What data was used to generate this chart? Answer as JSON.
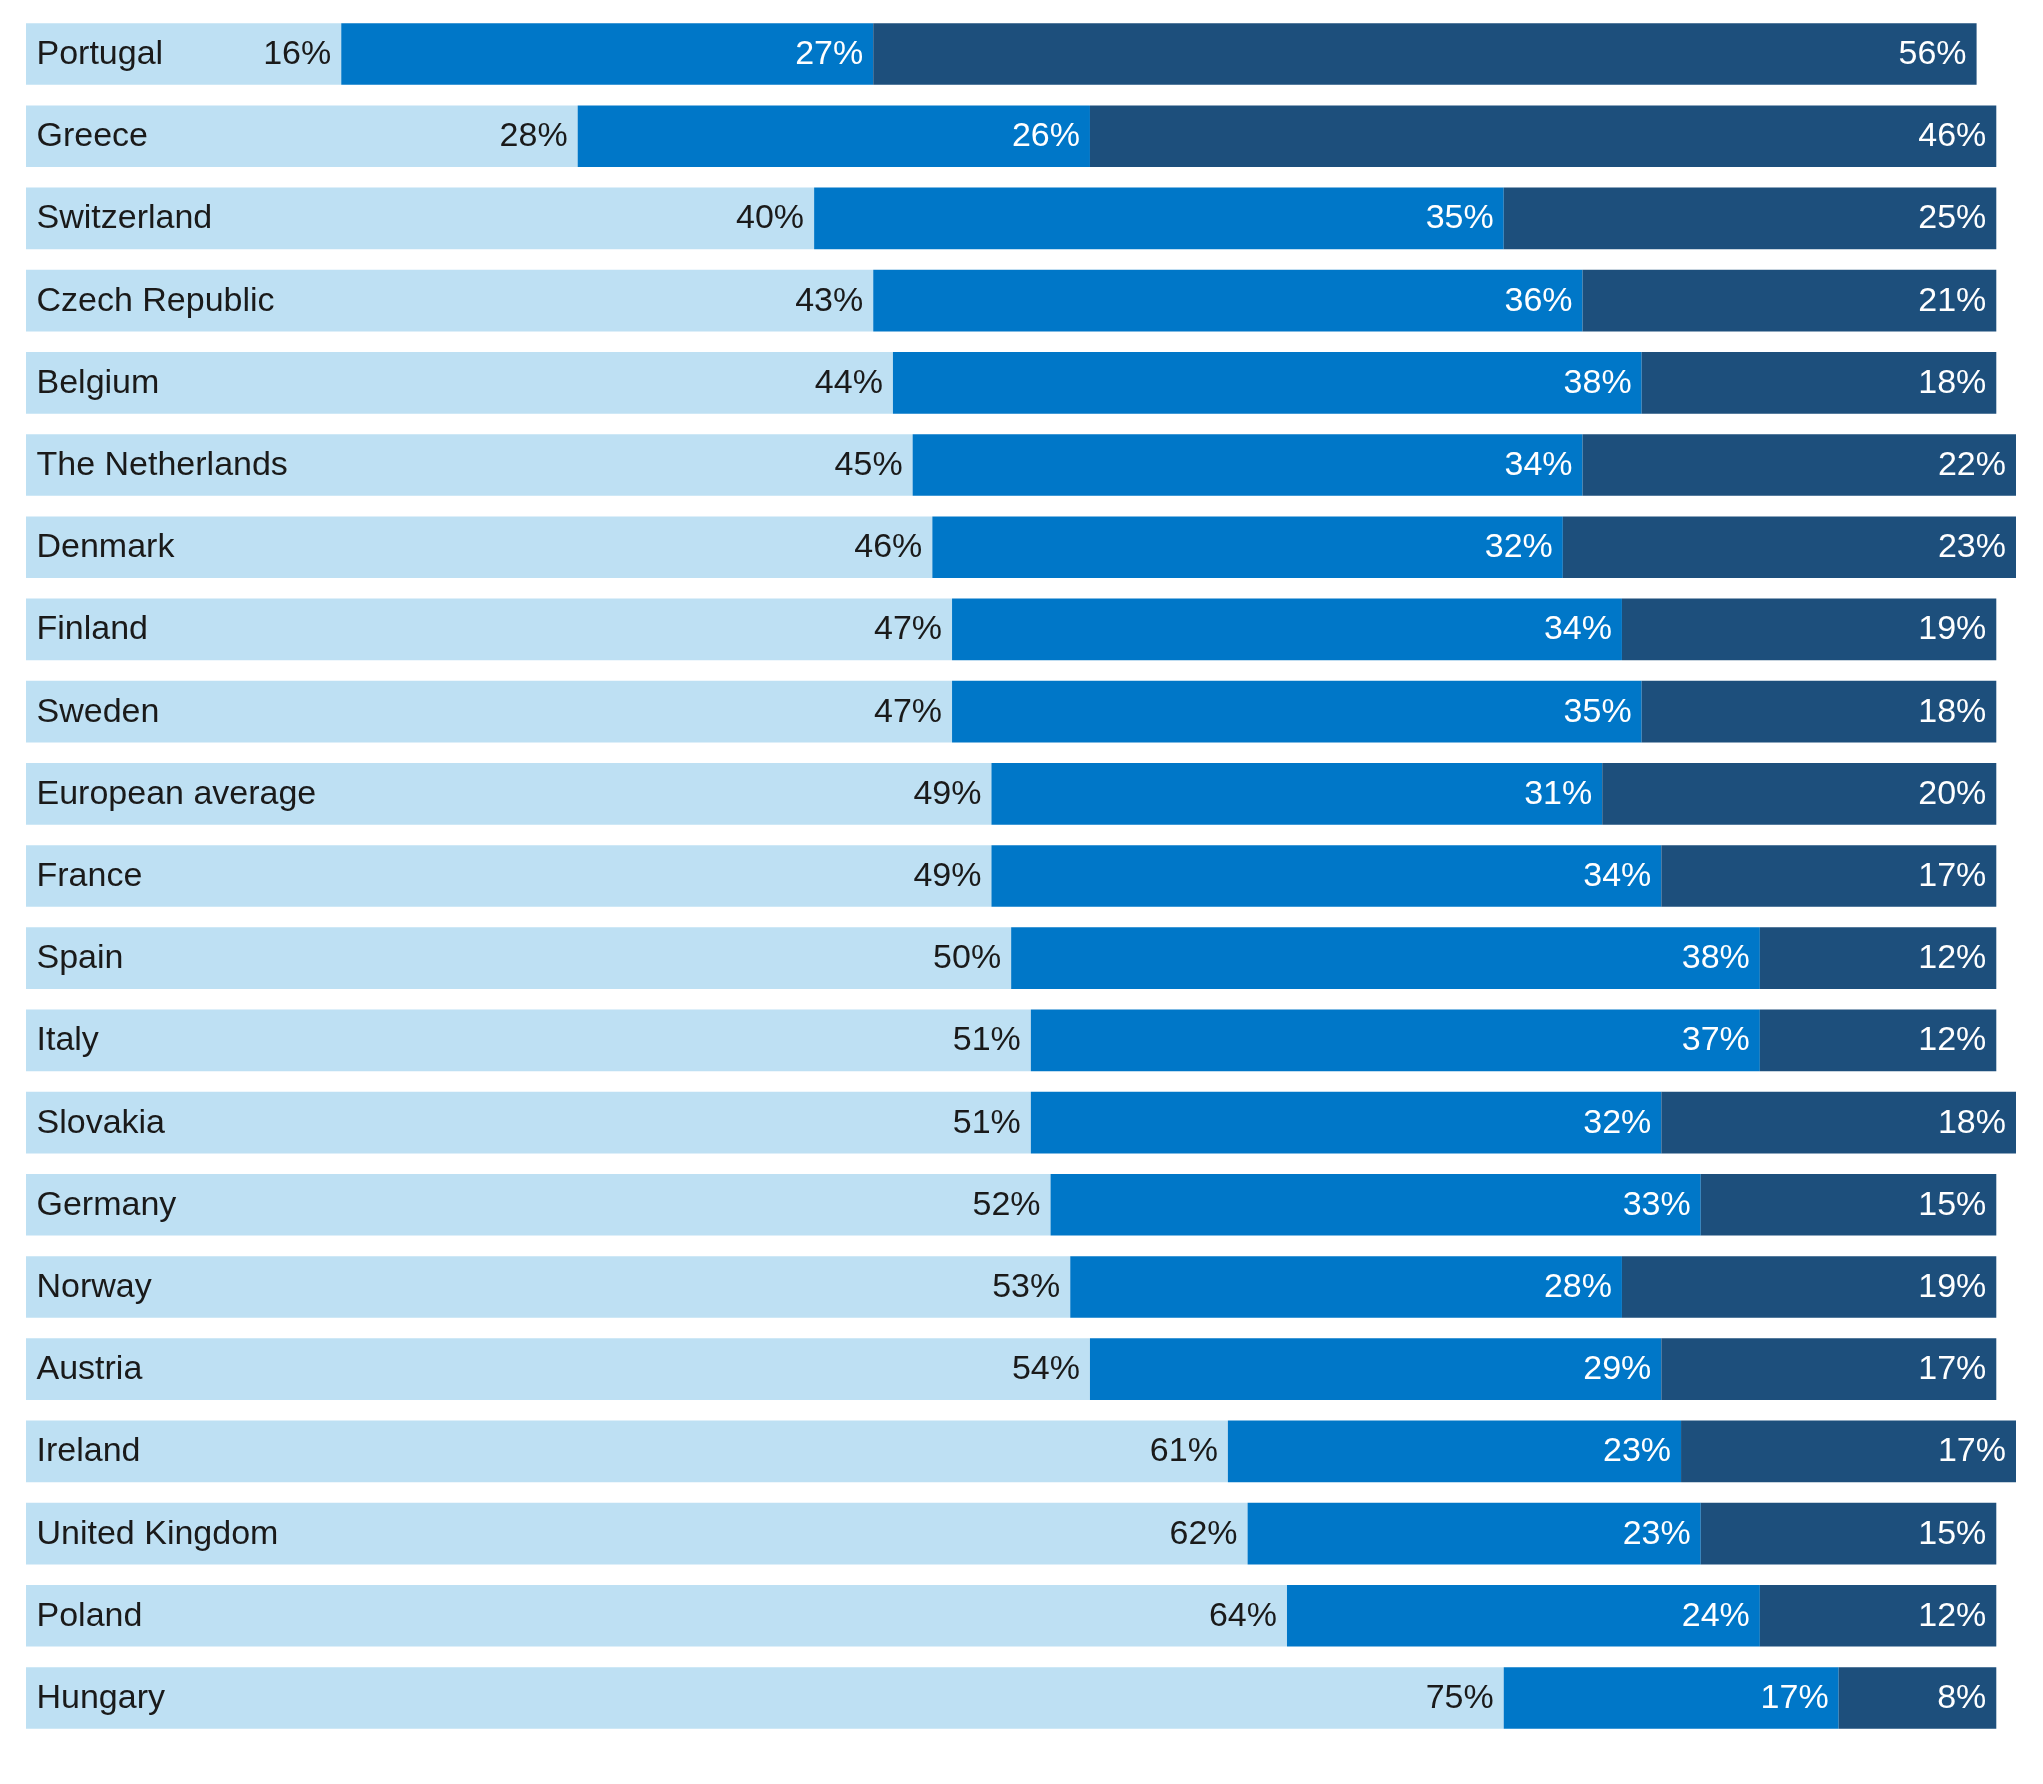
{
  "chart_data": {
    "type": "bar",
    "orientation": "horizontal",
    "stacked": true,
    "legend": false,
    "grid": false,
    "categories": [
      "Portugal",
      "Greece",
      "Switzerland",
      "Czech Republic",
      "Belgium",
      "The Netherlands",
      "Denmark",
      "Finland",
      "Sweden",
      "European average",
      "France",
      "Spain",
      "Italy",
      "Slovakia",
      "Germany",
      "Norway",
      "Austria",
      "Ireland",
      "United Kingdom",
      "Poland",
      "Hungary"
    ],
    "series": [
      {
        "color": "#bee0f3",
        "values": [
          16,
          28,
          40,
          43,
          44,
          45,
          46,
          47,
          47,
          49,
          49,
          50,
          51,
          51,
          52,
          53,
          54,
          61,
          62,
          64,
          75
        ],
        "value_labels": [
          "16%",
          "28%",
          "40%",
          "43%",
          "44%",
          "45%",
          "46%",
          "47%",
          "47%",
          "49%",
          "49%",
          "50%",
          "51%",
          "51%",
          "52%",
          "53%",
          "54%",
          "61%",
          "62%",
          "64%",
          "75%"
        ]
      },
      {
        "color": "#0077c8",
        "values": [
          27,
          26,
          35,
          36,
          38,
          34,
          32,
          34,
          35,
          31,
          34,
          38,
          37,
          32,
          33,
          28,
          29,
          23,
          23,
          24,
          17
        ],
        "value_labels": [
          "27%",
          "26%",
          "35%",
          "36%",
          "38%",
          "34%",
          "32%",
          "34%",
          "35%",
          "31%",
          "34%",
          "38%",
          "37%",
          "32%",
          "33%",
          "28%",
          "29%",
          "23%",
          "23%",
          "24%",
          "17%"
        ]
      },
      {
        "color": "#1d4f7c",
        "values": [
          56,
          46,
          25,
          21,
          18,
          22,
          23,
          19,
          18,
          20,
          17,
          12,
          12,
          18,
          15,
          19,
          17,
          17,
          15,
          12,
          8
        ],
        "value_labels": [
          "56%",
          "46%",
          "25%",
          "21%",
          "18%",
          "22%",
          "23%",
          "19%",
          "18%",
          "20%",
          "17%",
          "12%",
          "12%",
          "18%",
          "15%",
          "19%",
          "17%",
          "17%",
          "15%",
          "12%",
          "8%"
        ]
      }
    ]
  }
}
